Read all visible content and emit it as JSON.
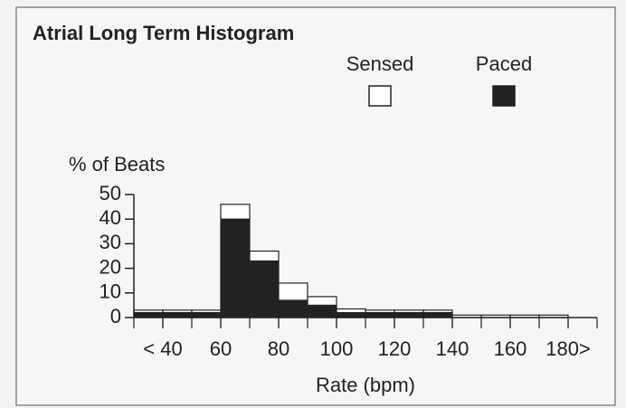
{
  "chart_data": {
    "type": "histogram",
    "title": "Atrial Long Term Histogram",
    "y_label": "% of Beats",
    "x_label": "Rate (bpm)",
    "bins": [
      30,
      40,
      50,
      60,
      70,
      80,
      90,
      100,
      110,
      120,
      130,
      140,
      150,
      160,
      170,
      180
    ],
    "series": [
      {
        "name": "Sensed",
        "color": "#ffffff",
        "values": [
          1,
          1,
          1,
          6,
          4,
          7,
          3.5,
          1.5,
          1,
          1,
          1,
          1,
          1,
          1,
          1
        ]
      },
      {
        "name": "Paced",
        "color": "#222222",
        "values": [
          2,
          2,
          2,
          40,
          23,
          7,
          5,
          2,
          2,
          2,
          2,
          0,
          0,
          0,
          0
        ]
      }
    ],
    "xlim": [
      30,
      190
    ],
    "ylim": [
      0,
      50
    ],
    "xticks": [
      {
        "value": 40,
        "label": "< 40"
      },
      60,
      80,
      100,
      120,
      140,
      160,
      {
        "value": 180,
        "label": "180>"
      }
    ],
    "yticks": [
      0,
      10,
      20,
      30,
      40,
      50
    ],
    "legend": "top-right",
    "grid": false
  }
}
